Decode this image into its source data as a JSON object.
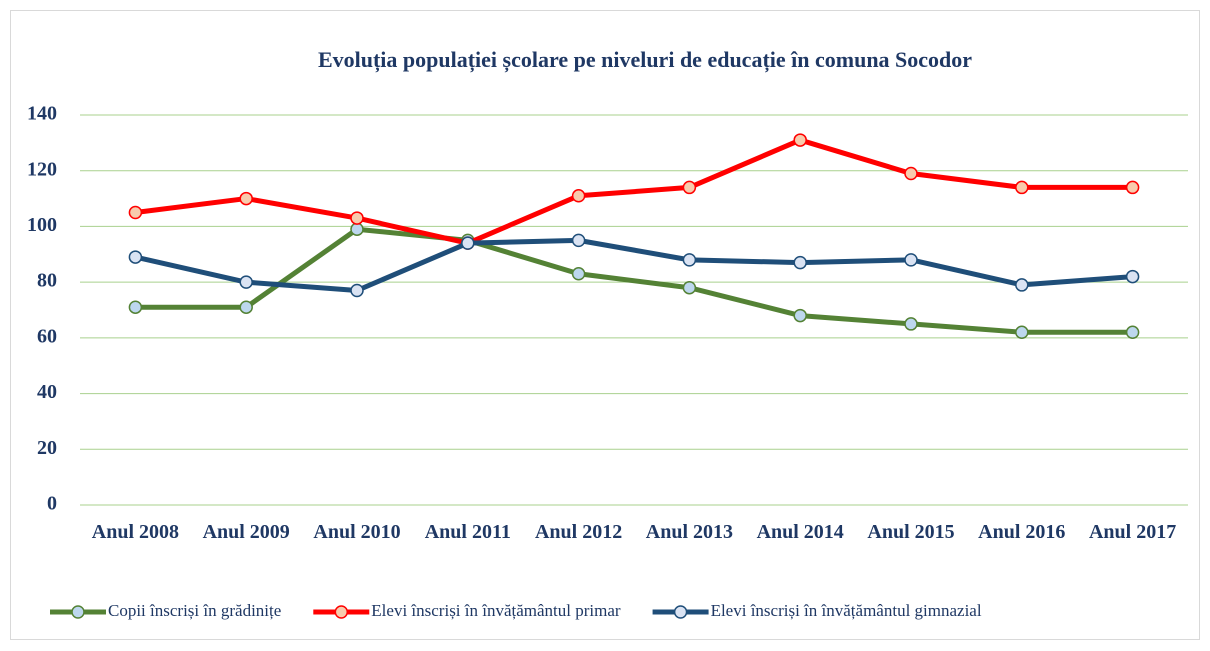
{
  "chart_data": {
    "type": "line",
    "title": "Evoluția populației școlare pe niveluri de educație în comuna Socodor",
    "categories": [
      "Anul 2008",
      "Anul 2009",
      "Anul 2010",
      "Anul 2011",
      "Anul 2012",
      "Anul 2013",
      "Anul 2014",
      "Anul 2015",
      "Anul 2016",
      "Anul 2017"
    ],
    "series": [
      {
        "name": "Copii înscriși în grădinițe",
        "color": "#548235",
        "marker_fill": "#bdd7ee",
        "values": [
          71,
          71,
          99,
          95,
          83,
          78,
          68,
          65,
          62,
          62
        ]
      },
      {
        "name": "Elevi înscriși în învățământul primar",
        "color": "#ff0000",
        "marker_fill": "#f8cbad",
        "values": [
          105,
          110,
          103,
          94,
          111,
          114,
          131,
          119,
          114,
          114
        ]
      },
      {
        "name": "Elevi înscriși în învățământul gimnazial",
        "color": "#1f4e79",
        "marker_fill": "#dae3f3",
        "values": [
          89,
          80,
          77,
          94,
          95,
          88,
          87,
          88,
          79,
          82
        ]
      }
    ],
    "ylim": [
      0,
      140
    ],
    "yticks": [
      0,
      20,
      40,
      60,
      80,
      100,
      120,
      140
    ],
    "grid": true,
    "legend": "bottom"
  }
}
